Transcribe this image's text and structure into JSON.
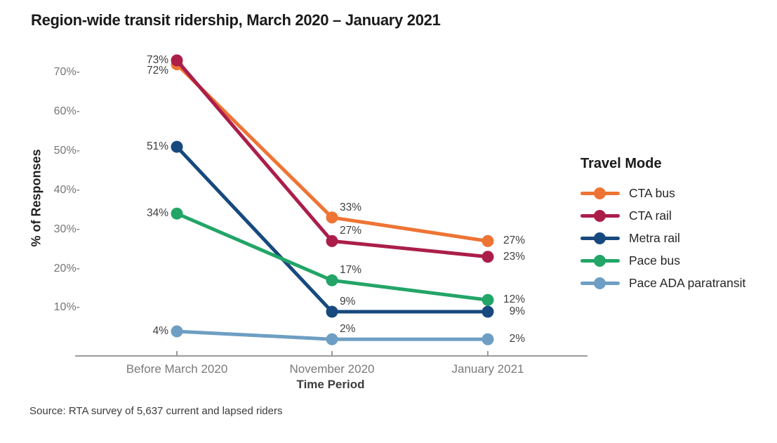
{
  "source_note": "Source: RTA survey of 5,637 current and lapsed riders",
  "chart_data": {
    "type": "line",
    "title": "Region-wide transit ridership, March 2020 – January 2021",
    "categories": [
      "Before March 2020",
      "November 2020",
      "January 2021"
    ],
    "xlabel": "Time Period",
    "ylabel": "% of Responses",
    "ylim": [
      0,
      78
    ],
    "yticks": [
      {
        "value": 10,
        "label": "10%-"
      },
      {
        "value": 20,
        "label": "20%-"
      },
      {
        "value": 30,
        "label": "30%-"
      },
      {
        "value": 40,
        "label": "40%-"
      },
      {
        "value": 50,
        "label": "50%-"
      },
      {
        "value": 60,
        "label": "60%-"
      },
      {
        "value": 70,
        "label": "70%-"
      }
    ],
    "grid": false,
    "legend": {
      "title": "Travel Mode",
      "position": "right"
    },
    "series": [
      {
        "name": "CTA bus",
        "color": "#EE7435",
        "values": [
          72,
          33,
          27
        ],
        "point_labels": [
          "72%",
          "33%",
          "27%"
        ],
        "label_dy": [
          9,
          0,
          0
        ]
      },
      {
        "name": "CTA rail",
        "color": "#AB1E4A",
        "values": [
          73,
          27,
          23
        ],
        "point_labels": [
          "73%",
          "27%",
          "23%"
        ],
        "label_dy": [
          0,
          0,
          0
        ]
      },
      {
        "name": "Metra rail",
        "color": "#17497E",
        "values": [
          51,
          9,
          9
        ],
        "point_labels": [
          "51%",
          "9%",
          "9%"
        ],
        "label_dy": [
          0,
          0,
          0
        ]
      },
      {
        "name": "Pace bus",
        "color": "#23A567",
        "values": [
          34,
          17,
          12
        ],
        "point_labels": [
          "34%",
          "17%",
          "12%"
        ],
        "label_dy": [
          0,
          0,
          0
        ]
      },
      {
        "name": "Pace ADA paratransit",
        "color": "#6E9EC3",
        "values": [
          4,
          2,
          2
        ],
        "point_labels": [
          "4%",
          "2%",
          "2%"
        ],
        "label_dy": [
          0,
          0,
          0
        ]
      }
    ],
    "axis_color": "#9B9B9B",
    "tick_label_color": "#767676",
    "data_label_color": "#3E3E3E"
  }
}
